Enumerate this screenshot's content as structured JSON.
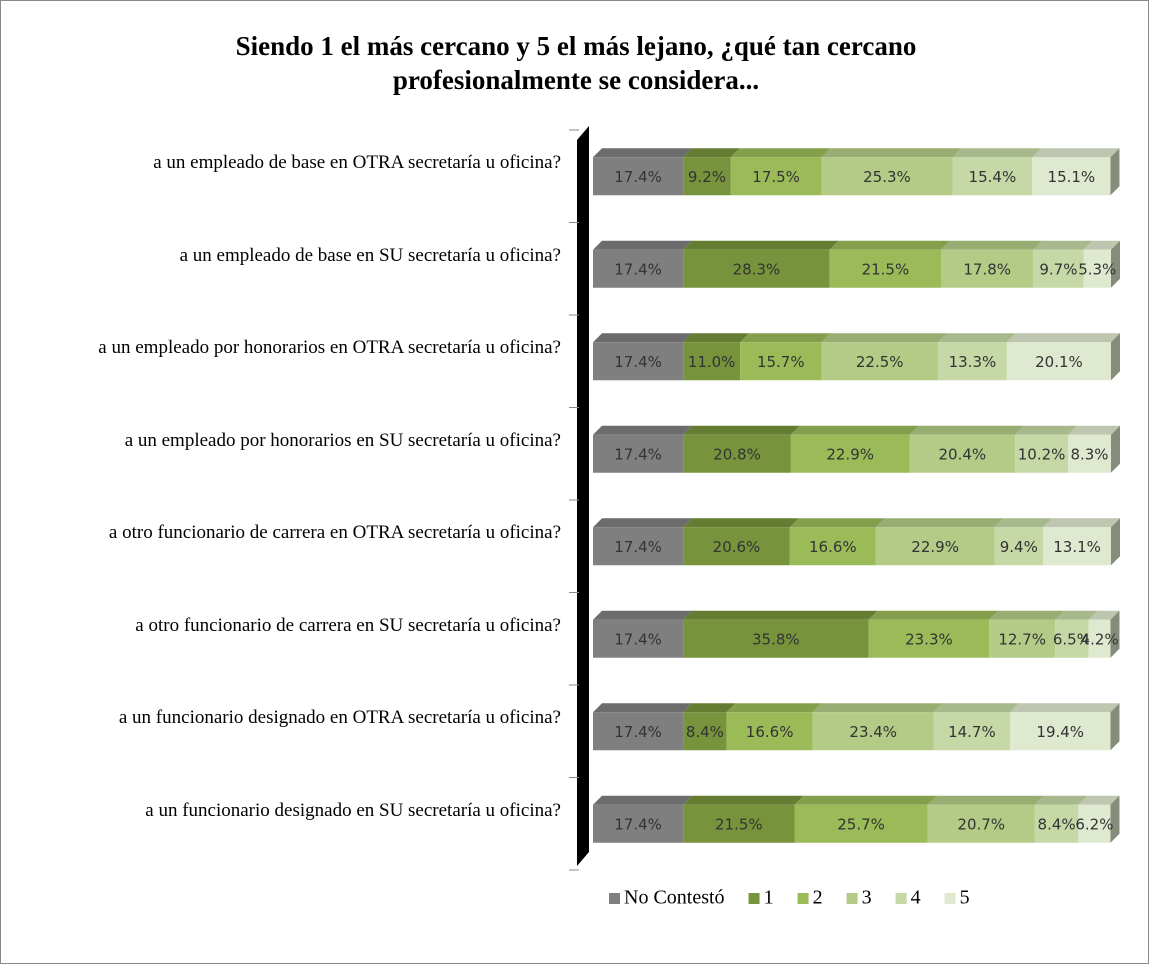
{
  "chart_data": {
    "type": "bar",
    "orientation": "horizontal",
    "stacked": true,
    "title": "Siendo 1 el más cercano y 5 el más lejano, ¿qué tan cercano profesionalmente se considera...",
    "categories": [
      "a un empleado de base en OTRA secretaría u oficina?",
      "a un empleado de base en SU secretaría u oficina?",
      "a un empleado por honorarios en OTRA secretaría u oficina?",
      "a un empleado por honorarios en SU secretaría u oficina?",
      "a otro funcionario de carrera en OTRA secretaría u oficina?",
      "a otro funcionario de carrera en SU secretaría u oficina?",
      "a un funcionario designado en OTRA secretaría u oficina?",
      "a un funcionario designado en SU secretaría u oficina?"
    ],
    "series": [
      {
        "name": "No Contestó",
        "color": "#7f7f7f",
        "values": [
          17.4,
          17.4,
          17.4,
          17.4,
          17.4,
          17.4,
          17.4,
          17.4
        ],
        "value_labels": [
          "17.4%",
          "17.4%",
          "17.4%",
          "17.4%",
          "17.4%",
          "17.4%",
          "17.4%",
          "17.4%"
        ]
      },
      {
        "name": "1",
        "color": "#77933c",
        "values": [
          9.2,
          28.3,
          11.0,
          20.8,
          20.6,
          35.8,
          8.4,
          21.5
        ],
        "value_labels": [
          "9.2%",
          "28.3%",
          "11.0%",
          "20.8%",
          "20.6%",
          "35.8%",
          "8.4%",
          "21.5%"
        ]
      },
      {
        "name": "2",
        "color": "#9bbb59",
        "values": [
          17.5,
          21.5,
          15.7,
          22.9,
          16.6,
          23.3,
          16.6,
          25.7
        ],
        "value_labels": [
          "17.5%",
          "21.5%",
          "15.7%",
          "22.9%",
          "16.6%",
          "23.3%",
          "16.6%",
          "25.7%"
        ]
      },
      {
        "name": "3",
        "color": "#b3cb86",
        "values": [
          25.3,
          17.8,
          22.5,
          20.4,
          22.9,
          12.7,
          23.4,
          20.7
        ],
        "value_labels": [
          "25.3%",
          "17.8%",
          "22.5%",
          "20.4%",
          "22.9%",
          "12.7%",
          "23.4%",
          "20.7%"
        ]
      },
      {
        "name": "4",
        "color": "#c6d8a6",
        "values": [
          15.4,
          9.7,
          13.3,
          10.2,
          9.4,
          6.5,
          14.7,
          8.4
        ],
        "value_labels": [
          "15.4%",
          "9.7%",
          "13.3%",
          "10.2%",
          "9.4%",
          "6.5%",
          "14.7%",
          "8.4%"
        ]
      },
      {
        "name": "5",
        "color": "#dfe9cf",
        "values": [
          15.1,
          5.3,
          20.1,
          8.3,
          13.1,
          4.2,
          19.4,
          6.2
        ],
        "value_labels": [
          "15.1%",
          "5.3%",
          "20.1%",
          "8.3%",
          "13.1%",
          "4.2%",
          "19.4%",
          "6.2%"
        ]
      }
    ],
    "xlim": [
      0,
      100
    ],
    "legend": "bottom"
  }
}
